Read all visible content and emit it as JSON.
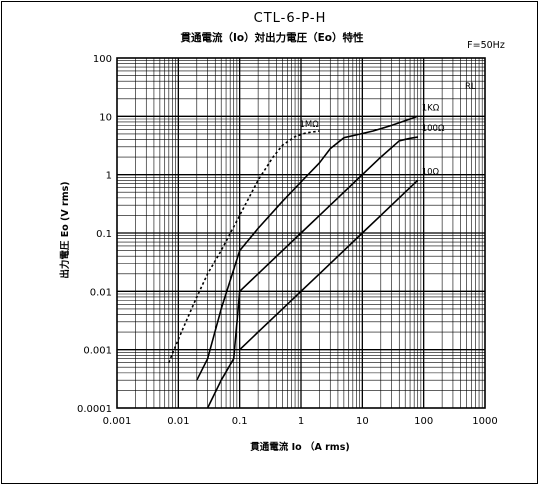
{
  "chart_data": {
    "type": "line",
    "title": "CTL-6-P-H",
    "subtitle": "貫通電流（Io）対出力電圧（Eo）特性",
    "frequency": "F=50Hz",
    "xlabel": "貫通電流 Io （A rms)",
    "ylabel": "出力電圧 Eo (V rms)",
    "x_scale": "log",
    "y_scale": "log",
    "xlim": [
      0.001,
      1000
    ],
    "ylim": [
      0.0001,
      100
    ],
    "x_ticks": [
      "0.001",
      "0.01",
      "0.1",
      "1",
      "10",
      "100",
      "1000"
    ],
    "y_ticks": [
      "100",
      "10",
      "1",
      "0.1",
      "0.01",
      "0.001",
      "0.0001"
    ],
    "grid": true,
    "legend_title": "RL",
    "series": [
      {
        "name": "1MΩ",
        "style": "dotted",
        "x": [
          0.007,
          0.01,
          0.015,
          0.02,
          0.03,
          0.05,
          0.1,
          0.2,
          0.35,
          0.5,
          0.8,
          1.2,
          2
        ],
        "y": [
          0.0006,
          0.0015,
          0.004,
          0.008,
          0.02,
          0.05,
          0.2,
          0.8,
          2,
          3.2,
          4.5,
          5.2,
          5.6
        ]
      },
      {
        "name": "1KΩ",
        "style": "solid",
        "x": [
          0.02,
          0.03,
          0.05,
          0.1,
          0.2,
          0.5,
          1,
          2,
          3,
          5,
          8,
          15,
          30,
          60,
          80
        ],
        "y": [
          0.0003,
          0.0007,
          0.005,
          0.05,
          0.12,
          0.35,
          0.75,
          1.6,
          2.8,
          4.3,
          4.8,
          5.6,
          7,
          9,
          10
        ]
      },
      {
        "name": "100Ω",
        "style": "solid",
        "x": [
          0.03,
          0.05,
          0.08,
          0.1,
          0.2,
          0.5,
          1,
          2,
          5,
          10,
          20,
          40,
          60,
          80
        ],
        "y": [
          0.0001,
          0.0003,
          0.0007,
          0.01,
          0.02,
          0.05,
          0.1,
          0.2,
          0.5,
          1,
          2,
          3.8,
          4.2,
          4.4
        ]
      },
      {
        "name": "10Ω",
        "style": "solid",
        "x": [
          0.1,
          0.2,
          0.5,
          1,
          2,
          5,
          10,
          20,
          50,
          80
        ],
        "y": [
          0.001,
          0.002,
          0.005,
          0.01,
          0.02,
          0.05,
          0.1,
          0.2,
          0.5,
          0.8
        ]
      }
    ]
  }
}
